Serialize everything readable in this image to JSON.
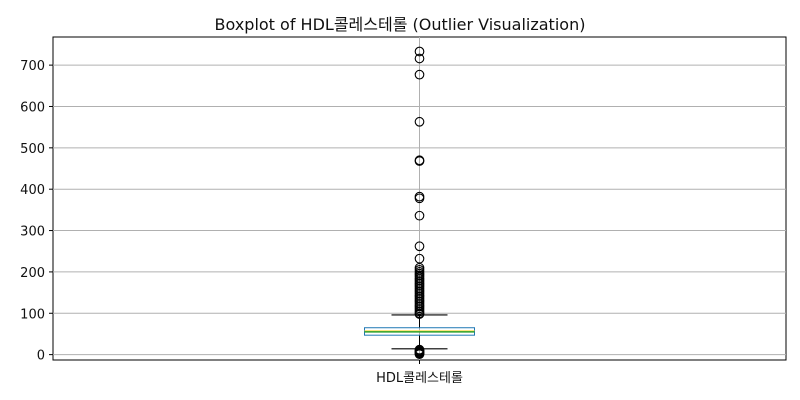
{
  "chart_data": {
    "type": "boxplot",
    "title": "Boxplot of HDL콜레스테롤 (Outlier Visualization)",
    "xlabel": "",
    "ylabel": "",
    "categories": [
      "HDL콜레스테롤"
    ],
    "ylim": [
      -13,
      768
    ],
    "yticks": [
      0,
      100,
      200,
      300,
      400,
      500,
      600,
      700
    ],
    "grid": true,
    "boxes": [
      {
        "category": "HDL콜레스테롤",
        "whisker_low": 14,
        "q1": 47,
        "median": 55,
        "mean": 57,
        "q3": 65,
        "whisker_high": 96,
        "outliers": [
          733,
          716,
          677,
          563,
          470,
          468,
          382,
          378,
          336,
          262,
          232,
          210,
          205,
          200,
          196,
          192,
          188,
          184,
          180,
          176,
          172,
          168,
          164,
          160,
          156,
          152,
          148,
          144,
          140,
          136,
          132,
          128,
          124,
          120,
          116,
          112,
          108,
          104,
          100,
          98,
          12,
          10,
          8,
          6,
          4,
          2,
          1
        ]
      }
    ],
    "colors": {
      "box": "#1f77b4",
      "median": "#2ca02c",
      "mean": "#ffdd57",
      "whisker": "#000000",
      "grid": "#b0b0b0"
    }
  }
}
